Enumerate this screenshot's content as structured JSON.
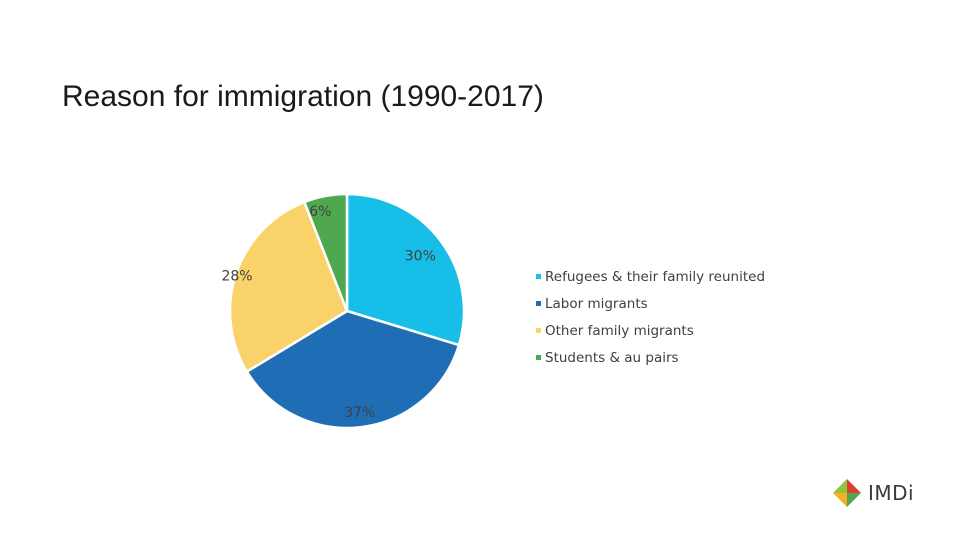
{
  "chart_data": {
    "type": "pie",
    "title": "Reason for immigration (1990-2017)",
    "slices": [
      {
        "name": "Refugees & their family reunited",
        "value": 30,
        "label": "30%",
        "color": "#17bfe8"
      },
      {
        "name": "Labor migrants",
        "value": 37,
        "label": "37%",
        "color": "#1f6eb5"
      },
      {
        "name": "Other family migrants",
        "value": 28,
        "label": "28%",
        "color": "#f9d36a"
      },
      {
        "name": "Students & au pairs",
        "value": 6,
        "label": "6%",
        "color": "#4fa84f"
      }
    ],
    "legend_position": "right"
  },
  "logo": {
    "text": "IMDi",
    "colors": [
      "#e03c31",
      "#4fa84f",
      "#f4b223",
      "#8cc63f"
    ]
  }
}
